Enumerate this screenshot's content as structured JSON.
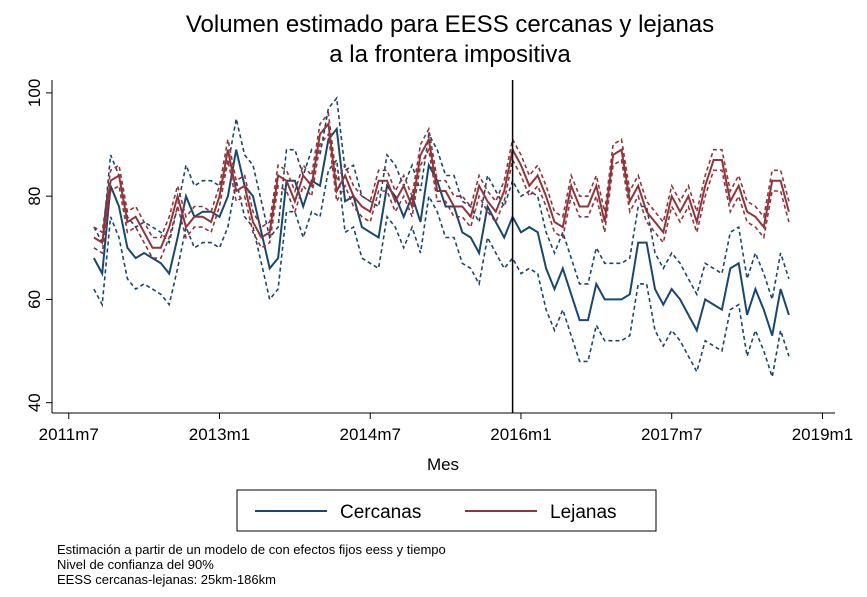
{
  "chart_data": {
    "type": "line",
    "title": [
      "Volumen estimado para EESS cercanas y lejanas",
      "a la frontera impositiva"
    ],
    "xlabel": "Mes",
    "notes": [
      "Estimación a partir de un modelo de con efectos fijos eess y tiempo",
      "Nivel de confianza del 90%",
      "EESS cercanas-lejanas: 25km-186km"
    ],
    "xlim": [
      616,
      709.5
    ],
    "ylim": [
      38,
      102.5
    ],
    "xticks": [
      {
        "value": 618,
        "label": "2011m7"
      },
      {
        "value": 636,
        "label": "2013m1"
      },
      {
        "value": 654,
        "label": "2014m7"
      },
      {
        "value": 672,
        "label": "2016m1"
      },
      {
        "value": 690,
        "label": "2017m7"
      },
      {
        "value": 708,
        "label": "2019m1"
      }
    ],
    "yticks": [
      40,
      60,
      80,
      100
    ],
    "xline": 671,
    "legend": "bottom",
    "x": [
      621,
      622,
      623,
      624,
      625,
      626,
      627,
      628,
      629,
      630,
      631,
      632,
      633,
      634,
      635,
      636,
      637,
      638,
      639,
      640,
      641,
      642,
      643,
      644,
      645,
      646,
      647,
      648,
      649,
      650,
      651,
      652,
      653,
      654,
      655,
      656,
      657,
      658,
      659,
      660,
      661,
      662,
      663,
      664,
      665,
      666,
      667,
      668,
      669,
      670,
      671,
      672,
      673,
      674,
      675,
      676,
      677,
      678,
      679,
      680,
      681,
      682,
      683,
      684,
      685,
      686,
      687,
      688,
      689,
      690,
      691,
      692,
      693,
      694,
      695,
      696,
      697,
      698,
      699,
      700,
      701,
      702,
      703,
      704
    ],
    "series": [
      {
        "name": "Cercanas",
        "color": "#1a476f",
        "values": [
          68,
          65,
          82,
          78,
          70,
          68,
          69,
          68,
          67,
          65,
          72,
          80,
          76,
          77,
          77,
          76,
          80,
          89,
          82,
          80,
          73,
          66,
          68,
          83,
          83,
          78,
          83,
          82,
          91,
          93,
          79,
          80,
          74,
          73,
          72,
          82,
          80,
          76,
          80,
          75,
          86,
          83,
          78,
          78,
          73,
          72,
          69,
          78,
          75,
          72,
          76,
          73,
          74,
          73,
          66,
          62,
          66,
          61,
          56,
          56,
          63,
          60,
          60,
          60,
          61,
          71,
          71,
          62,
          59,
          62,
          60,
          57,
          54,
          60,
          59,
          58,
          66,
          67,
          57,
          62,
          58,
          53,
          62,
          57
        ],
        "upper": [
          74,
          71,
          88,
          84,
          76,
          74,
          75,
          74,
          73,
          71,
          78,
          86,
          82,
          83,
          83,
          82,
          86,
          95,
          88,
          86,
          79,
          72,
          74,
          89,
          89,
          84,
          89,
          88,
          97,
          99,
          85,
          86,
          80,
          79,
          78,
          88,
          86,
          82,
          86,
          81,
          92,
          89,
          84,
          84,
          79,
          78,
          75,
          84,
          81,
          78,
          83,
          80,
          81,
          80,
          73,
          69,
          73,
          68,
          63,
          63,
          70,
          67,
          67,
          67,
          68,
          78,
          78,
          69,
          66,
          69,
          67,
          64,
          61,
          67,
          66,
          65,
          73,
          74,
          64,
          69,
          65,
          60,
          69,
          64
        ],
        "lower": [
          62,
          59,
          76,
          72,
          64,
          62,
          63,
          62,
          61,
          59,
          66,
          74,
          70,
          71,
          71,
          70,
          74,
          83,
          76,
          74,
          67,
          60,
          62,
          77,
          77,
          72,
          77,
          76,
          85,
          87,
          73,
          74,
          68,
          67,
          66,
          76,
          74,
          70,
          74,
          69,
          80,
          77,
          72,
          72,
          67,
          66,
          63,
          72,
          69,
          66,
          68,
          65,
          66,
          65,
          58,
          54,
          58,
          53,
          48,
          48,
          55,
          52,
          52,
          52,
          53,
          63,
          63,
          54,
          51,
          54,
          52,
          49,
          46,
          52,
          51,
          50,
          58,
          59,
          49,
          54,
          50,
          45,
          54,
          49
        ]
      },
      {
        "name": "Lejanas",
        "color": "#90353b",
        "values": [
          72,
          71,
          83,
          84,
          75,
          76,
          73,
          70,
          70,
          74,
          80,
          74,
          76,
          76,
          75,
          80,
          89,
          81,
          82,
          75,
          72,
          73,
          84,
          83,
          79,
          84,
          82,
          92,
          94,
          81,
          84,
          80,
          78,
          77,
          83,
          83,
          79,
          82,
          78,
          88,
          91,
          81,
          81,
          78,
          78,
          76,
          82,
          79,
          77,
          81,
          89,
          86,
          82,
          84,
          80,
          75,
          74,
          82,
          78,
          78,
          82,
          75,
          88,
          89,
          79,
          82,
          77,
          75,
          73,
          80,
          77,
          80,
          75,
          82,
          87,
          87,
          79,
          82,
          77,
          76,
          74,
          83,
          83,
          77
        ],
        "upper": [
          74,
          73,
          85,
          86,
          77,
          78,
          75,
          72,
          72,
          76,
          82,
          76,
          78,
          78,
          77,
          82,
          91,
          83,
          84,
          77,
          74,
          75,
          86,
          85,
          81,
          86,
          84,
          94,
          96,
          83,
          86,
          82,
          80,
          79,
          85,
          85,
          81,
          84,
          80,
          90,
          93,
          83,
          83,
          80,
          80,
          78,
          84,
          81,
          79,
          83,
          91,
          88,
          84,
          86,
          82,
          77,
          76,
          84,
          80,
          80,
          84,
          77,
          90,
          91,
          81,
          84,
          79,
          77,
          75,
          82,
          79,
          82,
          77,
          84,
          89,
          89,
          81,
          84,
          79,
          78,
          76,
          85,
          85,
          79
        ],
        "lower": [
          70,
          69,
          81,
          82,
          73,
          74,
          71,
          68,
          68,
          72,
          78,
          72,
          74,
          74,
          73,
          78,
          87,
          79,
          80,
          73,
          70,
          71,
          82,
          81,
          77,
          82,
          80,
          90,
          92,
          79,
          82,
          78,
          76,
          75,
          81,
          81,
          77,
          80,
          76,
          86,
          89,
          79,
          79,
          76,
          76,
          74,
          80,
          77,
          75,
          79,
          87,
          84,
          80,
          82,
          78,
          73,
          72,
          80,
          76,
          76,
          80,
          73,
          86,
          87,
          77,
          80,
          75,
          73,
          71,
          78,
          75,
          78,
          73,
          80,
          85,
          85,
          77,
          80,
          75,
          74,
          72,
          81,
          81,
          75
        ]
      }
    ]
  }
}
